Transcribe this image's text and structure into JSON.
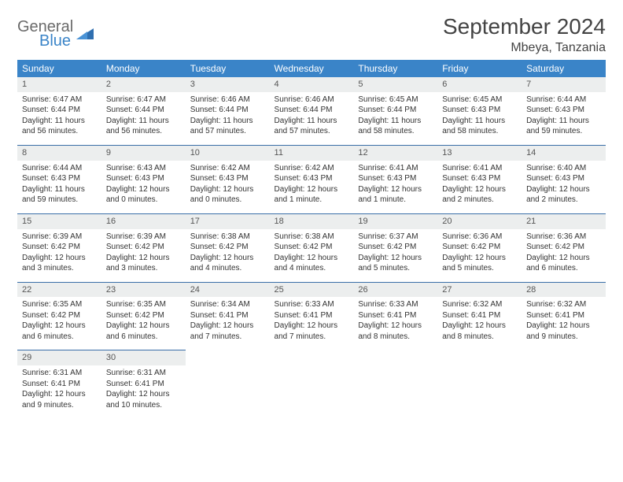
{
  "logo": {
    "text1": "General",
    "text2": "Blue"
  },
  "title": "September 2024",
  "location": "Mbeya, Tanzania",
  "colors": {
    "header_bg": "#3a84c8",
    "header_text": "#ffffff",
    "daynum_bg": "#eceeee",
    "rule": "#3a6fa8",
    "body_text": "#333333",
    "logo_gray": "#6a6a6a",
    "logo_blue": "#3a84c8"
  },
  "fonts": {
    "title_pt": 28,
    "location_pt": 16,
    "th_pt": 12,
    "cell_pt": 10
  },
  "weekdays": [
    "Sunday",
    "Monday",
    "Tuesday",
    "Wednesday",
    "Thursday",
    "Friday",
    "Saturday"
  ],
  "weeks": [
    [
      {
        "n": "1",
        "sr": "6:47 AM",
        "ss": "6:44 PM",
        "dl": "11 hours and 56 minutes."
      },
      {
        "n": "2",
        "sr": "6:47 AM",
        "ss": "6:44 PM",
        "dl": "11 hours and 56 minutes."
      },
      {
        "n": "3",
        "sr": "6:46 AM",
        "ss": "6:44 PM",
        "dl": "11 hours and 57 minutes."
      },
      {
        "n": "4",
        "sr": "6:46 AM",
        "ss": "6:44 PM",
        "dl": "11 hours and 57 minutes."
      },
      {
        "n": "5",
        "sr": "6:45 AM",
        "ss": "6:44 PM",
        "dl": "11 hours and 58 minutes."
      },
      {
        "n": "6",
        "sr": "6:45 AM",
        "ss": "6:43 PM",
        "dl": "11 hours and 58 minutes."
      },
      {
        "n": "7",
        "sr": "6:44 AM",
        "ss": "6:43 PM",
        "dl": "11 hours and 59 minutes."
      }
    ],
    [
      {
        "n": "8",
        "sr": "6:44 AM",
        "ss": "6:43 PM",
        "dl": "11 hours and 59 minutes."
      },
      {
        "n": "9",
        "sr": "6:43 AM",
        "ss": "6:43 PM",
        "dl": "12 hours and 0 minutes."
      },
      {
        "n": "10",
        "sr": "6:42 AM",
        "ss": "6:43 PM",
        "dl": "12 hours and 0 minutes."
      },
      {
        "n": "11",
        "sr": "6:42 AM",
        "ss": "6:43 PM",
        "dl": "12 hours and 1 minute."
      },
      {
        "n": "12",
        "sr": "6:41 AM",
        "ss": "6:43 PM",
        "dl": "12 hours and 1 minute."
      },
      {
        "n": "13",
        "sr": "6:41 AM",
        "ss": "6:43 PM",
        "dl": "12 hours and 2 minutes."
      },
      {
        "n": "14",
        "sr": "6:40 AM",
        "ss": "6:43 PM",
        "dl": "12 hours and 2 minutes."
      }
    ],
    [
      {
        "n": "15",
        "sr": "6:39 AM",
        "ss": "6:42 PM",
        "dl": "12 hours and 3 minutes."
      },
      {
        "n": "16",
        "sr": "6:39 AM",
        "ss": "6:42 PM",
        "dl": "12 hours and 3 minutes."
      },
      {
        "n": "17",
        "sr": "6:38 AM",
        "ss": "6:42 PM",
        "dl": "12 hours and 4 minutes."
      },
      {
        "n": "18",
        "sr": "6:38 AM",
        "ss": "6:42 PM",
        "dl": "12 hours and 4 minutes."
      },
      {
        "n": "19",
        "sr": "6:37 AM",
        "ss": "6:42 PM",
        "dl": "12 hours and 5 minutes."
      },
      {
        "n": "20",
        "sr": "6:36 AM",
        "ss": "6:42 PM",
        "dl": "12 hours and 5 minutes."
      },
      {
        "n": "21",
        "sr": "6:36 AM",
        "ss": "6:42 PM",
        "dl": "12 hours and 6 minutes."
      }
    ],
    [
      {
        "n": "22",
        "sr": "6:35 AM",
        "ss": "6:42 PM",
        "dl": "12 hours and 6 minutes."
      },
      {
        "n": "23",
        "sr": "6:35 AM",
        "ss": "6:42 PM",
        "dl": "12 hours and 6 minutes."
      },
      {
        "n": "24",
        "sr": "6:34 AM",
        "ss": "6:41 PM",
        "dl": "12 hours and 7 minutes."
      },
      {
        "n": "25",
        "sr": "6:33 AM",
        "ss": "6:41 PM",
        "dl": "12 hours and 7 minutes."
      },
      {
        "n": "26",
        "sr": "6:33 AM",
        "ss": "6:41 PM",
        "dl": "12 hours and 8 minutes."
      },
      {
        "n": "27",
        "sr": "6:32 AM",
        "ss": "6:41 PM",
        "dl": "12 hours and 8 minutes."
      },
      {
        "n": "28",
        "sr": "6:32 AM",
        "ss": "6:41 PM",
        "dl": "12 hours and 9 minutes."
      }
    ],
    [
      {
        "n": "29",
        "sr": "6:31 AM",
        "ss": "6:41 PM",
        "dl": "12 hours and 9 minutes."
      },
      {
        "n": "30",
        "sr": "6:31 AM",
        "ss": "6:41 PM",
        "dl": "12 hours and 10 minutes."
      },
      null,
      null,
      null,
      null,
      null
    ]
  ],
  "labels": {
    "sunrise": "Sunrise:",
    "sunset": "Sunset:",
    "daylight": "Daylight:"
  }
}
